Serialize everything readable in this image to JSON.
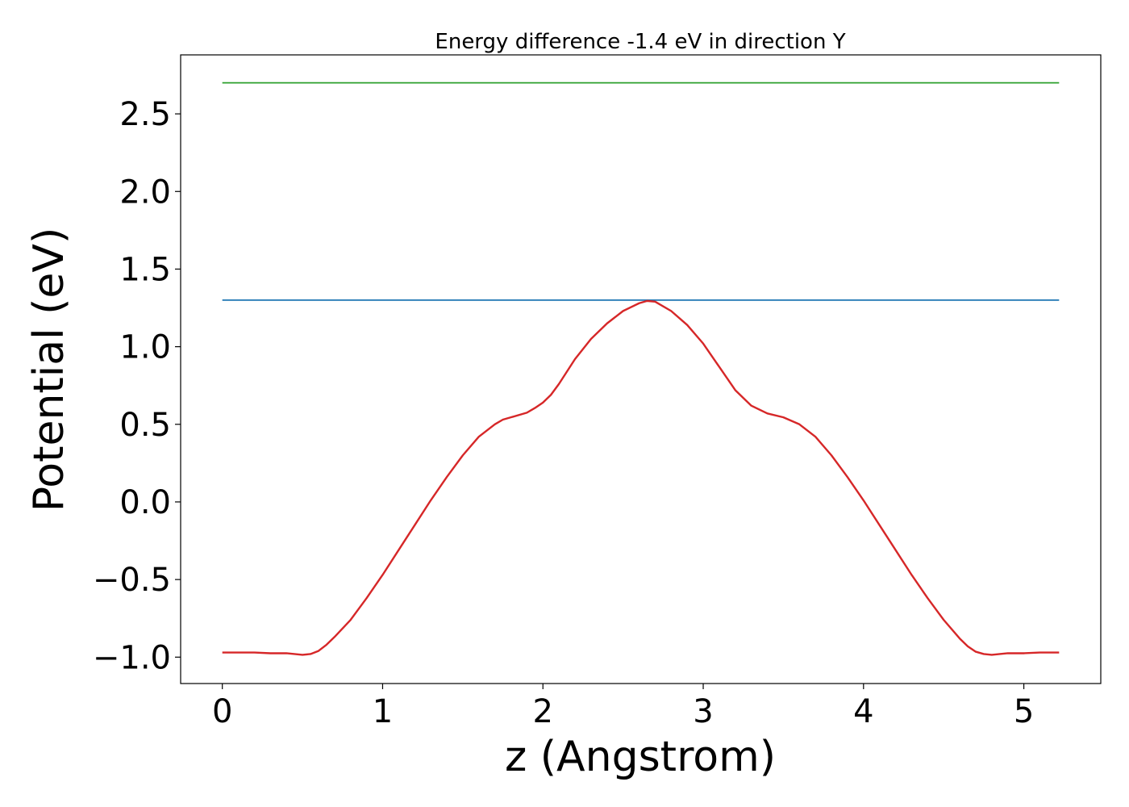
{
  "chart_data": {
    "type": "line",
    "title": "Energy difference -1.4 eV in direction Y",
    "xlabel": "z (Angstrom)",
    "ylabel": "Potential (eV)",
    "xlim": [
      -0.26,
      5.48
    ],
    "ylim": [
      -1.17,
      2.88
    ],
    "xticks": [
      0,
      1,
      2,
      3,
      4,
      5
    ],
    "xtick_labels": [
      "0",
      "1",
      "2",
      "3",
      "4",
      "5"
    ],
    "yticks": [
      -1.0,
      -0.5,
      0.0,
      0.5,
      1.0,
      1.5,
      2.0,
      2.5
    ],
    "ytick_labels": [
      "−1.0",
      "−0.5",
      "0.0",
      "0.5",
      "1.0",
      "1.5",
      "2.0",
      "2.5"
    ],
    "grid": false,
    "series": [
      {
        "color": "#2ca02c",
        "x": [
          0,
          5.22
        ],
        "y": [
          2.7,
          2.7
        ]
      },
      {
        "color": "#1f77b4",
        "x": [
          0,
          5.22
        ],
        "y": [
          1.3,
          1.3
        ]
      },
      {
        "color": "#d62728",
        "x": [
          0,
          0.2,
          0.3,
          0.4,
          0.5,
          0.55,
          0.6,
          0.65,
          0.7,
          0.8,
          0.9,
          1.0,
          1.1,
          1.2,
          1.3,
          1.4,
          1.5,
          1.6,
          1.7,
          1.75,
          1.8,
          1.9,
          1.95,
          2.0,
          2.05,
          2.1,
          2.2,
          2.3,
          2.4,
          2.5,
          2.6,
          2.65,
          2.7,
          2.8,
          2.9,
          3.0,
          3.1,
          3.2,
          3.3,
          3.4,
          3.5,
          3.6,
          3.7,
          3.8,
          3.9,
          4.0,
          4.1,
          4.2,
          4.3,
          4.4,
          4.5,
          4.6,
          4.65,
          4.7,
          4.75,
          4.8,
          4.9,
          5.0,
          5.1,
          5.22
        ],
        "y": [
          -0.97,
          -0.97,
          -0.975,
          -0.975,
          -0.985,
          -0.98,
          -0.96,
          -0.92,
          -0.87,
          -0.76,
          -0.62,
          -0.47,
          -0.31,
          -0.15,
          0.01,
          0.16,
          0.3,
          0.42,
          0.5,
          0.53,
          0.545,
          0.575,
          0.605,
          0.64,
          0.69,
          0.76,
          0.92,
          1.05,
          1.15,
          1.23,
          1.28,
          1.295,
          1.29,
          1.23,
          1.14,
          1.02,
          0.87,
          0.72,
          0.62,
          0.57,
          0.545,
          0.5,
          0.42,
          0.3,
          0.16,
          0.01,
          -0.15,
          -0.31,
          -0.47,
          -0.62,
          -0.76,
          -0.88,
          -0.93,
          -0.965,
          -0.98,
          -0.985,
          -0.975,
          -0.975,
          -0.97,
          -0.97
        ]
      }
    ]
  }
}
